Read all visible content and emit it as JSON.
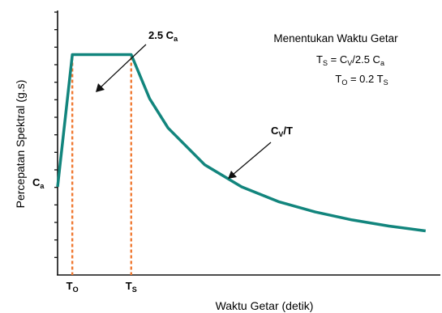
{
  "chart_data": {
    "type": "line",
    "title": "",
    "xlabel": "Waktu Getar (detik)",
    "ylabel": "Percepatan Spektral (g.s)",
    "x_tick_labels": [
      {
        "main": "T",
        "sub": "O",
        "x": 0.2
      },
      {
        "main": "T",
        "sub": "S",
        "x": 1.0
      }
    ],
    "y_tick_labels": [
      {
        "main": "C",
        "sub": "a",
        "y": 0.4
      }
    ],
    "xlim": [
      0,
      5.2
    ],
    "ylim": [
      0,
      1.2
    ],
    "series": [
      {
        "color": "#12857d",
        "points": [
          [
            0.0,
            0.4
          ],
          [
            0.2,
            1.0
          ],
          [
            1.0,
            1.0
          ],
          [
            1.25,
            0.8
          ],
          [
            1.5,
            0.667
          ],
          [
            2.0,
            0.5
          ],
          [
            2.5,
            0.4
          ],
          [
            3.0,
            0.333
          ],
          [
            3.5,
            0.286
          ],
          [
            4.0,
            0.25
          ],
          [
            4.5,
            0.222
          ],
          [
            5.0,
            0.2
          ]
        ]
      }
    ],
    "reference_lines": [
      {
        "x": 0.2,
        "color": "#f07830",
        "style": "dashed"
      },
      {
        "x": 1.0,
        "color": "#f07830",
        "style": "dashed"
      }
    ],
    "annotations": [
      {
        "main": "2.5 C",
        "sub": "a",
        "points_to": [
          0.5,
          1.0
        ]
      },
      {
        "main": "C",
        "sub": "V",
        "after": "/T",
        "points_to": [
          2.2,
          0.455
        ]
      }
    ],
    "note": {
      "title": "Menentukan Waktu Getar",
      "eq1": {
        "a": "T",
        "a_sub": "S",
        "b": " = C",
        "b_sub": "V",
        "c": "/2.5 C",
        "c_sub": "a"
      },
      "eq2": {
        "a": "T",
        "a_sub": "O",
        "b": " = 0.2 T",
        "b_sub": "S"
      }
    },
    "grid": false,
    "legend": "none",
    "y_ticks_count": 15
  }
}
